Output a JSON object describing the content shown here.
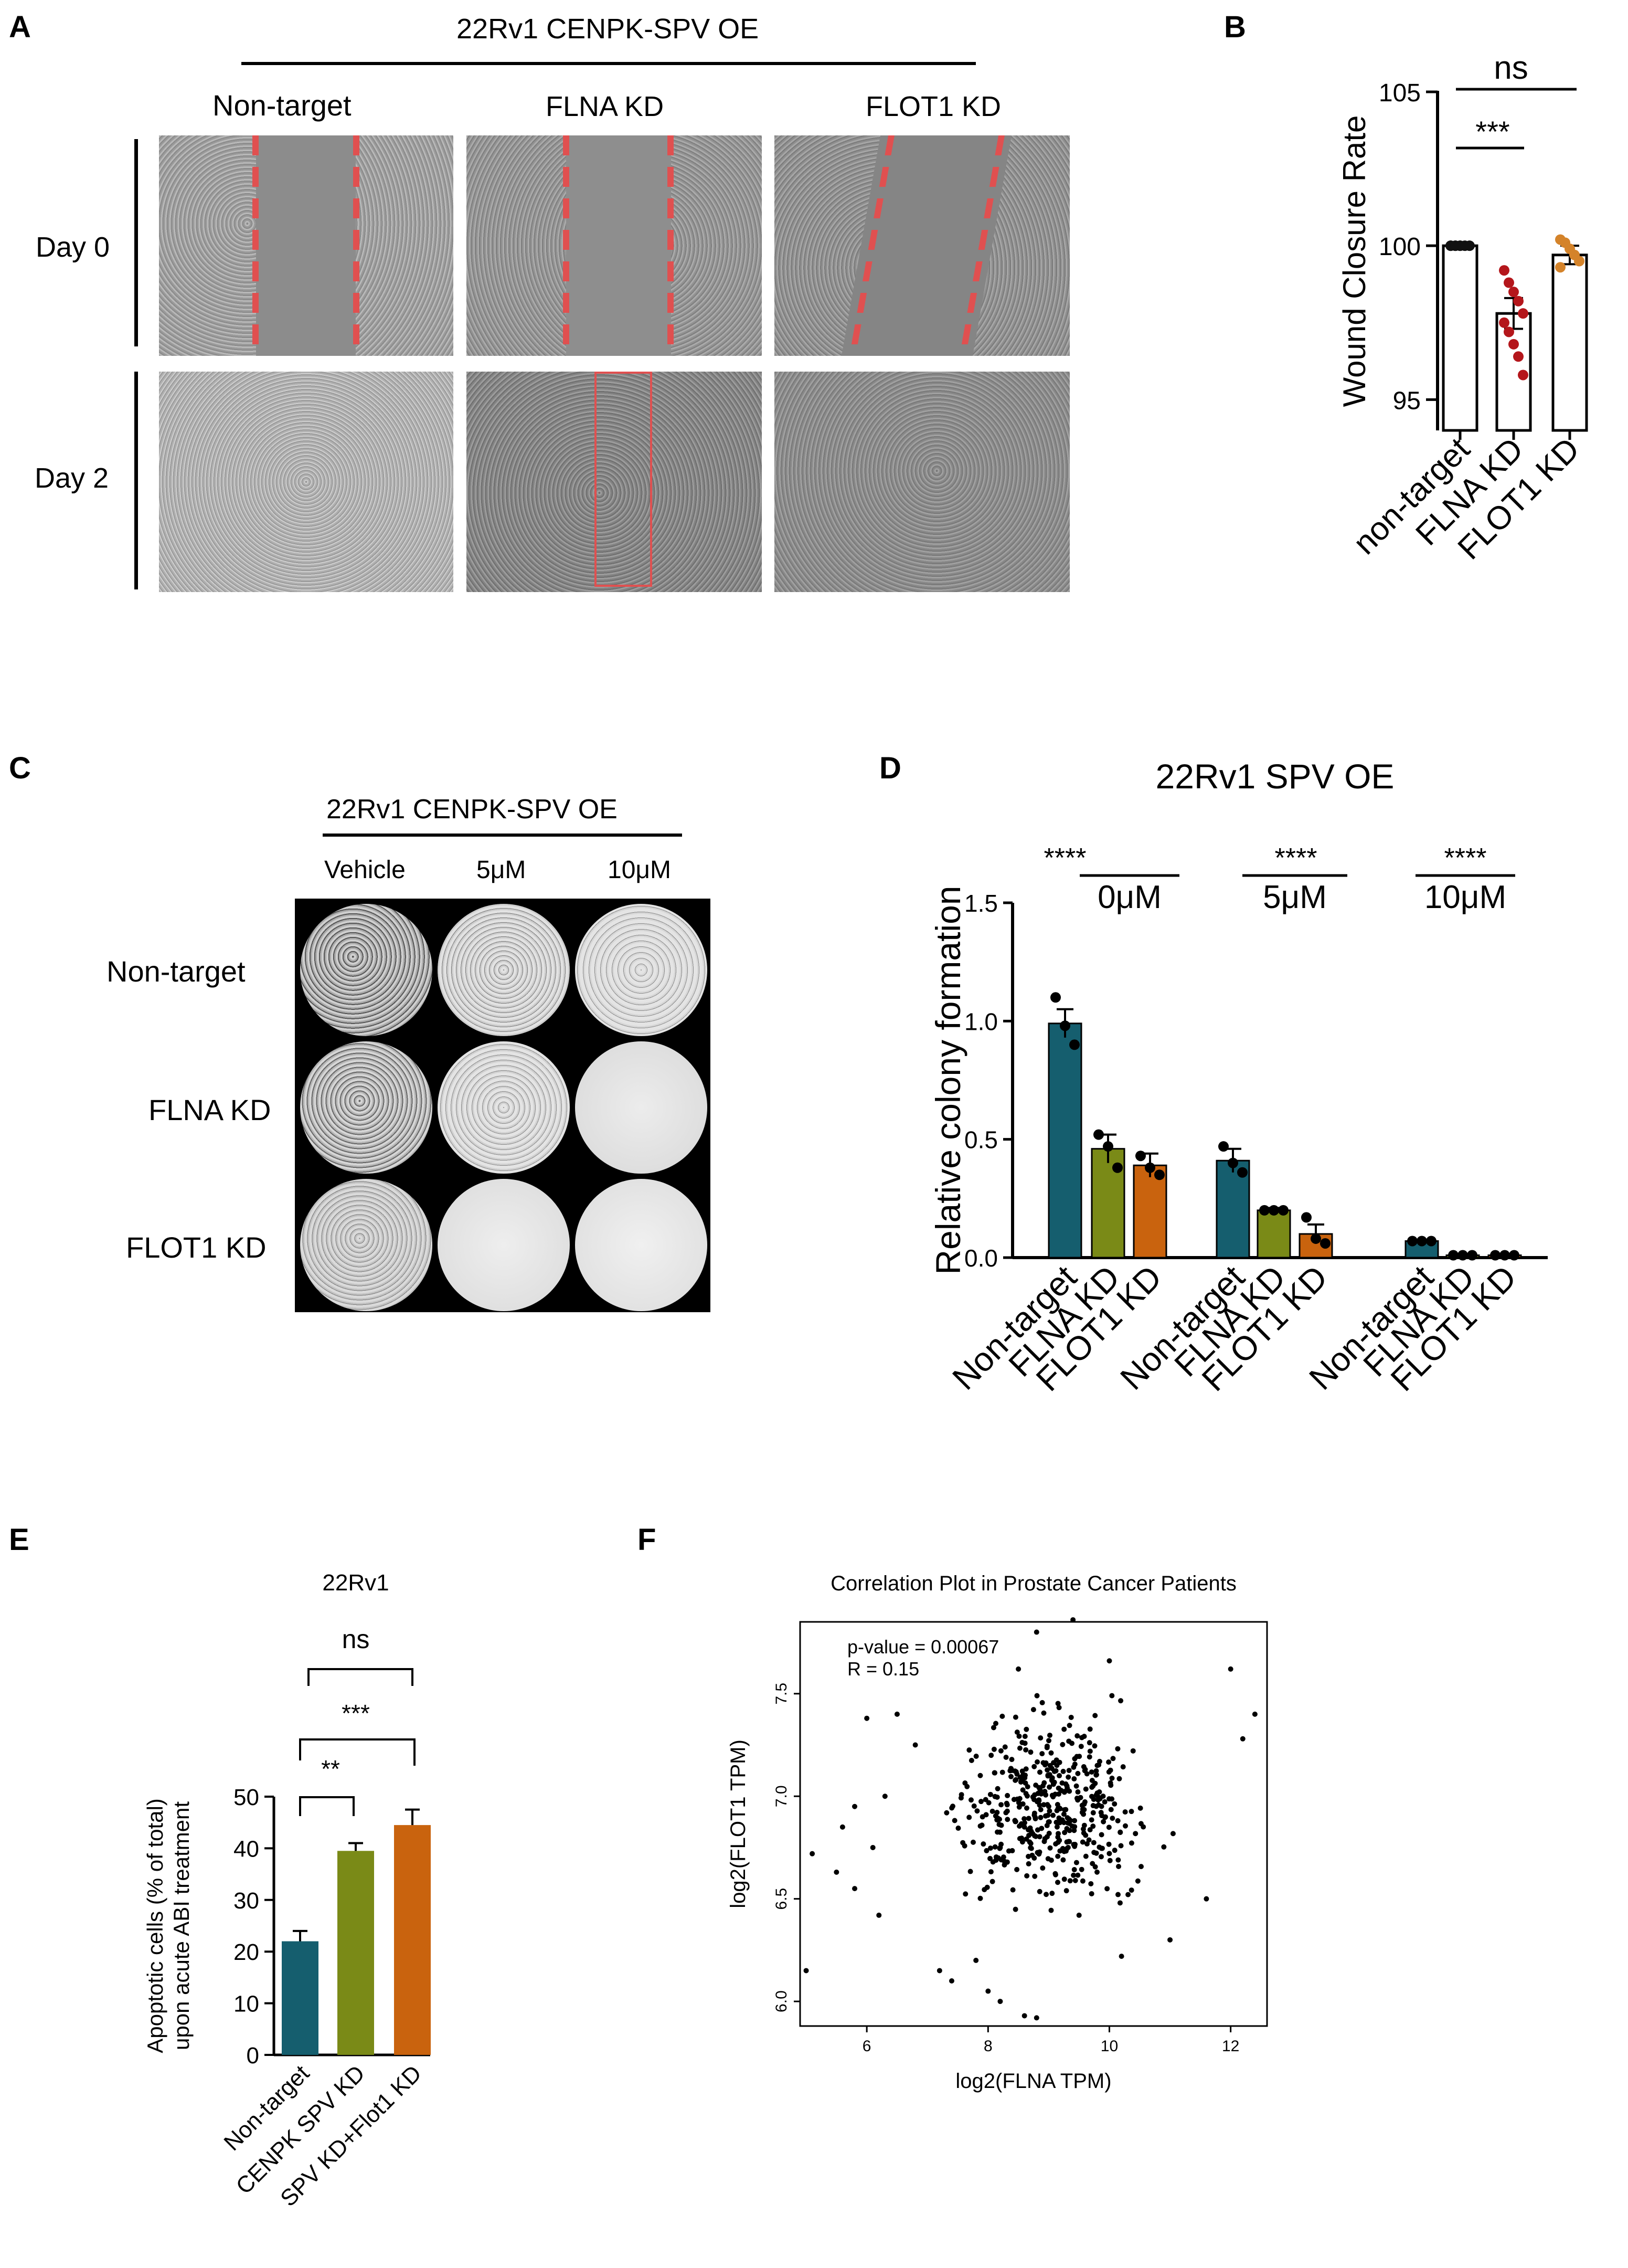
{
  "figure": {
    "panels": {
      "A": {
        "letter": "A",
        "title": "22Rv1 CENPK-SPV OE",
        "columns": [
          "Non-target",
          "FLNA KD",
          "FLOT1 KD"
        ],
        "rows": [
          "Day 0",
          "Day 2"
        ]
      },
      "B": {
        "letter": "B",
        "significance": [
          "ns",
          "***"
        ]
      },
      "C": {
        "letter": "C",
        "title": "22Rv1 CENPK-SPV OE",
        "columns": [
          "Vehicle",
          "5μM",
          "10μM"
        ],
        "rows": [
          "Non-target",
          "FLNA KD",
          "FLOT1 KD"
        ]
      },
      "D": {
        "letter": "D",
        "stars": [
          "****",
          "****",
          "****"
        ],
        "groups": [
          "0μM",
          "5μM",
          "10μM"
        ]
      },
      "E": {
        "letter": "E",
        "significance": [
          "ns",
          "***",
          "**"
        ]
      },
      "F": {
        "letter": "F",
        "annotation_p": "p-value = 0.00067",
        "annotation_r": "R = 0.15"
      }
    },
    "colors": {
      "teal": "#155e6e",
      "olive": "#7a8a17",
      "orange": "#c9630e",
      "red_dot": "#b4161b",
      "orange_dot": "#d4832a",
      "wound_line": "#e05050"
    }
  },
  "chart_data": [
    {
      "id": "B",
      "type": "bar",
      "title": "",
      "ylabel": "Wound Closure Rate",
      "xlabel": "",
      "categories": [
        "non-target",
        "FLNA KD",
        "FLOT1 KD"
      ],
      "values": [
        100.0,
        97.8,
        99.7
      ],
      "errors": [
        0.05,
        0.5,
        0.3
      ],
      "ylim": [
        94,
        105
      ],
      "yticks": [
        95,
        100,
        105
      ],
      "points": [
        [
          100,
          100,
          100,
          100,
          100,
          100,
          100,
          100
        ],
        [
          99.2,
          98.8,
          98.5,
          98.2,
          97.8,
          97.5,
          97.2,
          96.8,
          96.4,
          95.8
        ],
        [
          100.2,
          100.1,
          99.9,
          99.7,
          99.5,
          99.3
        ]
      ]
    },
    {
      "id": "D",
      "type": "bar",
      "title": "22Rv1 SPV OE",
      "ylabel": "Relative colony formation",
      "xlabel": "",
      "ylim": [
        0,
        1.5
      ],
      "yticks": [
        "0.0",
        "0.5",
        "1.0",
        "1.5"
      ],
      "categories": [
        "Non-target",
        "FLNA KD",
        "FLOT1 KD",
        "Non-target",
        "FLNA KD",
        "FLOT1 KD",
        "Non-target",
        "FLNA KD",
        "FLOT1 KD"
      ],
      "values": [
        0.99,
        0.46,
        0.39,
        0.41,
        0.2,
        0.1,
        0.07,
        0.01,
        0.01
      ],
      "errors": [
        0.06,
        0.06,
        0.05,
        0.05,
        0.01,
        0.04,
        0.005,
        0.003,
        0.003
      ],
      "points": [
        [
          1.1,
          0.98,
          0.9
        ],
        [
          0.52,
          0.47,
          0.38
        ],
        [
          0.43,
          0.38,
          0.35
        ],
        [
          0.47,
          0.4,
          0.36
        ],
        [
          0.2,
          0.2,
          0.2
        ],
        [
          0.17,
          0.08,
          0.06
        ],
        [
          0.07,
          0.07,
          0.07
        ],
        [
          0.01,
          0.01,
          0.01
        ],
        [
          0.01,
          0.01,
          0.01
        ]
      ]
    },
    {
      "id": "E",
      "type": "bar",
      "title": "22Rv1",
      "ylabel_line1": "Apoptotic cells (% of total)",
      "ylabel_line2": "upon acute ABI treatment",
      "xlabel": "",
      "categories": [
        "Non-target",
        "CENPK SPV KD",
        "SPV KD+Flot1 KD"
      ],
      "values": [
        22,
        39.5,
        44.5
      ],
      "errors": [
        2,
        1.5,
        3
      ],
      "ylim": [
        0,
        50
      ],
      "yticks": [
        0,
        10,
        20,
        30,
        40,
        50
      ]
    },
    {
      "id": "F",
      "type": "scatter",
      "title": "Correlation Plot in Prostate Cancer Patients",
      "xlabel": "log2(FLNA TPM)",
      "ylabel": "log2(FLOT1 TPM)",
      "xlim": [
        4.9,
        12.6
      ],
      "ylim": [
        5.88,
        7.85
      ],
      "xticks": [
        6,
        8,
        10,
        12
      ],
      "yticks": [
        "6.0",
        "6.5",
        "7.0",
        "7.5"
      ],
      "n_points": 500,
      "points_sample": [
        [
          5,
          6.15
        ],
        [
          5.1,
          6.72
        ],
        [
          5.5,
          6.63
        ],
        [
          5.6,
          6.85
        ],
        [
          5.8,
          6.95
        ],
        [
          5.8,
          6.55
        ],
        [
          6.0,
          7.38
        ],
        [
          6.1,
          6.75
        ],
        [
          6.2,
          6.42
        ],
        [
          6.3,
          7.0
        ],
        [
          6.5,
          7.4
        ],
        [
          6.8,
          7.25
        ],
        [
          7.2,
          6.15
        ],
        [
          7.4,
          6.1
        ],
        [
          7.8,
          6.2
        ],
        [
          8.0,
          6.05
        ],
        [
          8.2,
          6.0
        ],
        [
          8.6,
          5.93
        ],
        [
          8.8,
          5.92
        ],
        [
          9.5,
          6.42
        ],
        [
          10.2,
          6.22
        ],
        [
          11.0,
          6.3
        ],
        [
          11.6,
          6.5
        ],
        [
          12.2,
          7.28
        ],
        [
          12.0,
          7.62
        ],
        [
          12.4,
          7.4
        ],
        [
          10.0,
          7.66
        ],
        [
          9.4,
          7.86
        ],
        [
          8.8,
          7.8
        ],
        [
          8.5,
          7.62
        ],
        [
          9.0,
          6.95
        ],
        [
          8.6,
          6.85
        ],
        [
          9.3,
          7.05
        ],
        [
          8.2,
          6.75
        ],
        [
          9.8,
          7.15
        ],
        [
          8.9,
          6.65
        ]
      ]
    }
  ]
}
